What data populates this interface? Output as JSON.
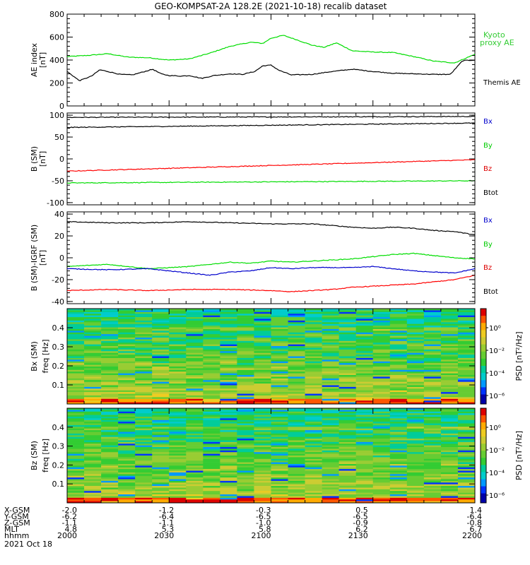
{
  "title": "GEO-KOMPSAT-2A 128.2E (2021-10-18) recalib dataset",
  "chart_data": [
    {
      "type": "line",
      "panel": "ae",
      "ylabel": [
        "AE index",
        "[nT]"
      ],
      "ylim": [
        0,
        800
      ],
      "yticks": [
        "0",
        "200",
        "400",
        "600",
        "800"
      ],
      "series": [
        {
          "name": "Kyoto proxy AE",
          "color": "#00dd00",
          "label_lines": [
            "Kyoto",
            "proxy AE"
          ],
          "x": [
            0,
            0.05,
            0.1,
            0.15,
            0.2,
            0.25,
            0.3,
            0.35,
            0.4,
            0.45,
            0.48,
            0.5,
            0.53,
            0.56,
            0.6,
            0.63,
            0.66,
            0.7,
            0.75,
            0.8,
            0.85,
            0.9,
            0.95,
            1.0
          ],
          "values": [
            430,
            440,
            455,
            425,
            420,
            400,
            410,
            460,
            520,
            555,
            545,
            590,
            615,
            580,
            530,
            510,
            550,
            480,
            470,
            465,
            430,
            390,
            375,
            450
          ]
        },
        {
          "name": "Themis AE",
          "color": "#000000",
          "label_lines": [
            "Themis AE"
          ],
          "x": [
            0,
            0.03,
            0.06,
            0.08,
            0.1,
            0.13,
            0.16,
            0.19,
            0.21,
            0.23,
            0.25,
            0.28,
            0.3,
            0.33,
            0.36,
            0.4,
            0.43,
            0.46,
            0.48,
            0.5,
            0.52,
            0.55,
            0.6,
            0.65,
            0.7,
            0.75,
            0.8,
            0.85,
            0.9,
            0.94,
            0.97,
            1.0
          ],
          "values": [
            300,
            220,
            260,
            315,
            300,
            275,
            270,
            300,
            320,
            280,
            265,
            260,
            265,
            240,
            265,
            280,
            275,
            300,
            350,
            355,
            310,
            270,
            275,
            300,
            320,
            300,
            285,
            280,
            275,
            275,
            395,
            400
          ]
        }
      ]
    },
    {
      "type": "line",
      "panel": "bsm",
      "ylabel": [
        "B (SM)",
        "[nT]"
      ],
      "ylim": [
        -105,
        105
      ],
      "yticks": [
        "-100",
        "-50",
        "0",
        "50",
        "100"
      ],
      "series": [
        {
          "name": "Bx",
          "color": "#000000",
          "values_start": 95,
          "values_end": 97
        },
        {
          "name": "By",
          "color": "#00dd00",
          "values_start": -55,
          "values_end": -50
        },
        {
          "name": "Bz",
          "color": "#ff0000",
          "values_start": -28,
          "values_end": -2
        },
        {
          "name": "Btot",
          "color": "#000000",
          "values_start": 72,
          "values_end": 82
        }
      ],
      "legend": [
        {
          "label": "Bx",
          "color": "#0000cc"
        },
        {
          "label": "By",
          "color": "#00cc00"
        },
        {
          "label": "Bz",
          "color": "#dd0000"
        },
        {
          "label": "Btot",
          "color": "#000000"
        }
      ]
    },
    {
      "type": "line",
      "panel": "bigrf",
      "ylabel": [
        "B (SM)-IGRF (SM)",
        "[nT]"
      ],
      "ylim": [
        -42,
        42
      ],
      "yticks": [
        "-40",
        "-20",
        "0",
        "20",
        "40"
      ],
      "series": [
        {
          "name": "Bx",
          "color": "#000000",
          "x": [
            0,
            0.1,
            0.2,
            0.3,
            0.4,
            0.5,
            0.6,
            0.7,
            0.75,
            0.8,
            0.85,
            0.9,
            0.95,
            1.0
          ],
          "values": [
            33,
            32,
            32,
            33,
            32,
            31,
            31,
            28,
            27,
            28,
            27,
            25,
            24,
            21
          ]
        },
        {
          "name": "By",
          "color": "#00dd00",
          "x": [
            0,
            0.1,
            0.2,
            0.3,
            0.35,
            0.4,
            0.45,
            0.5,
            0.55,
            0.6,
            0.7,
            0.75,
            0.8,
            0.85,
            0.9,
            0.95,
            1.0
          ],
          "values": [
            -8,
            -6,
            -10,
            -8,
            -6,
            -4,
            -5,
            -3,
            -4,
            -3,
            -1,
            1,
            3,
            4,
            2,
            0,
            -1
          ]
        },
        {
          "name": "Bz",
          "color": "#0000cc",
          "x": [
            0,
            0.1,
            0.2,
            0.3,
            0.35,
            0.4,
            0.45,
            0.5,
            0.55,
            0.6,
            0.7,
            0.75,
            0.8,
            0.85,
            0.9,
            0.95,
            1.0
          ],
          "values": [
            -10,
            -11,
            -10,
            -14,
            -16,
            -13,
            -12,
            -9,
            -10,
            -9,
            -9,
            -8,
            -10,
            -12,
            -13,
            -14,
            -10
          ]
        },
        {
          "name": "Btot",
          "color": "#ff0000",
          "x": [
            0,
            0.1,
            0.2,
            0.3,
            0.4,
            0.5,
            0.55,
            0.6,
            0.65,
            0.7,
            0.75,
            0.8,
            0.85,
            0.9,
            0.95,
            1.0
          ],
          "values": [
            -30,
            -29,
            -30,
            -29,
            -29,
            -30,
            -31,
            -30,
            -29,
            -27,
            -26,
            -25,
            -24,
            -22,
            -20,
            -16
          ]
        }
      ],
      "legend": [
        {
          "label": "Bx",
          "color": "#0000cc"
        },
        {
          "label": "By",
          "color": "#00cc00"
        },
        {
          "label": "Bz",
          "color": "#dd0000"
        },
        {
          "label": "Btot",
          "color": "#000000"
        }
      ]
    },
    {
      "type": "heatmap",
      "panel": "specx",
      "ylabel": [
        "Bx (SM)",
        "freq [Hz]"
      ],
      "ylim": [
        0,
        0.5
      ],
      "yticks": [
        "0.1",
        "0.2",
        "0.3",
        "0.4"
      ],
      "colorbar": {
        "label": "PSD [nT²/Hz]",
        "ticks": [
          "10⁰",
          "10⁻²",
          "10⁻⁴",
          "10⁻⁶"
        ]
      }
    },
    {
      "type": "heatmap",
      "panel": "specz",
      "ylabel": [
        "Bz (SM)",
        "freq [Hz]"
      ],
      "ylim": [
        0,
        0.5
      ],
      "yticks": [
        "0.1",
        "0.2",
        "0.3",
        "0.4"
      ],
      "colorbar": {
        "label": "PSD [nT²/Hz]",
        "ticks": [
          "10⁰",
          "10⁻²",
          "10⁻⁴",
          "10⁻⁶"
        ]
      }
    }
  ],
  "footer": {
    "row_labels": [
      "X-GSM",
      "Y-GSM",
      "Z-GSM",
      "MLT",
      "hhmm",
      "2021 Oct 18"
    ],
    "columns": [
      [
        "-2.0",
        "-6.2",
        "-1.1",
        "4.8",
        "2000"
      ],
      [
        "-1.2",
        "-6.4",
        "-1.1",
        "5.3",
        "2030"
      ],
      [
        "-0.3",
        "-6.5",
        "-1.0",
        "5.8",
        "2100"
      ],
      [
        "0.5",
        "-6.5",
        "-0.9",
        "6.2",
        "2130"
      ],
      [
        "1.4",
        "-6.4",
        "-0.8",
        "6.7",
        "2200"
      ]
    ]
  }
}
